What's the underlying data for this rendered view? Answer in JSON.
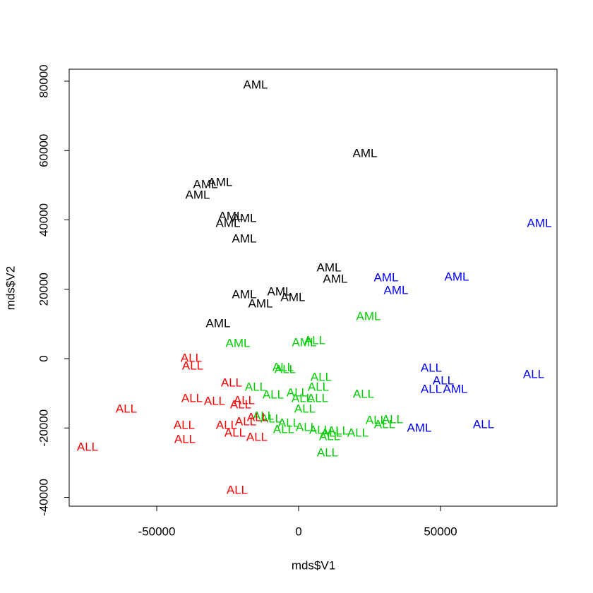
{
  "chart_data": {
    "type": "scatter-text",
    "x_label": "mds$V1",
    "y_label": "mds$V2",
    "xlim": [
      -80846,
      91045
    ],
    "ylim": [
      -42545,
      83461
    ],
    "xticks": [
      -50000,
      0,
      50000
    ],
    "yticks": [
      -40000,
      -20000,
      0,
      20000,
      40000,
      60000,
      80000
    ],
    "grid": false,
    "series": [
      {
        "color": "#000000",
        "labels": [
          "AML",
          "AML",
          "AML",
          "AML",
          "AML",
          "AML",
          "AML",
          "AML",
          "AML",
          "AML",
          "AML",
          "AML",
          "AML",
          "AML",
          "AML",
          "AML"
        ],
        "x": [
          -15174,
          23383,
          -32836,
          -27612,
          -35572,
          -23881,
          -19154,
          -24876,
          -19154,
          10697,
          12935,
          -19154,
          -6716,
          -1990,
          -13433,
          -28358
        ],
        "values": [
          78779,
          59033,
          50076,
          50687,
          47023,
          40916,
          40305,
          38880,
          34402,
          26056,
          22799,
          18321,
          19135,
          17506,
          15674,
          9975
        ]
      },
      {
        "color": "#0000ff",
        "labels": [
          "AML",
          "AML",
          "AML",
          "AML",
          "ALL",
          "ALL",
          "ALL",
          "ALL",
          "AML",
          "ALL",
          "AML"
        ],
        "x": [
          84826,
          30846,
          55721,
          34328,
          46766,
          82836,
          50995,
          46766,
          55224,
          65174,
          42537
        ],
        "values": [
          38880,
          23206,
          23410,
          19542,
          -2850,
          -4682,
          -6514,
          -8957,
          -8957,
          -19135,
          -20153
        ]
      },
      {
        "color": "#00cd00",
        "labels": [
          "AML",
          "AML",
          "AML",
          "ALL",
          "ALL",
          "ALL",
          "ALL",
          "ALL",
          "ALL",
          "ALL",
          "ALL",
          "ALL",
          "ALL",
          "ALL",
          "ALL",
          "ALL",
          "ALL",
          "ALL",
          "ALL",
          "ALL",
          "ALL",
          "ALL",
          "ALL",
          "ALL",
          "ALL",
          "ALL",
          "ALL",
          "ALL",
          "ALL"
        ],
        "x": [
          24627,
          -21393,
          1990,
          5721,
          -5473,
          -4726,
          7960,
          6965,
          -15174,
          -498,
          -8955,
          22886,
          1244,
          6716,
          2239,
          -12438,
          -9701,
          27363,
          33085,
          30348,
          -3483,
          -5224,
          2736,
          7463,
          11692,
          13930,
          20896,
          10945,
          10199
        ],
        "values": [
          12010,
          4275,
          4478,
          5089,
          -2646,
          -3257,
          -5496,
          -8346,
          -8346,
          -9975,
          -10585,
          -10382,
          -11603,
          -11603,
          -14656,
          -16692,
          -17506,
          -17913,
          -17710,
          -19135,
          -18728,
          -20560,
          -19949,
          -20763,
          -21578,
          -20967,
          -21578,
          -22595,
          -27277
        ]
      },
      {
        "color": "#ff0000",
        "labels": [
          "ALL",
          "ALL",
          "ALL",
          "ALL",
          "ALL",
          "ALL",
          "ALL",
          "ALL",
          "ALL",
          "ALL",
          "ALL",
          "ALL",
          "ALL",
          "ALL",
          "ALL",
          "ALL",
          "ALL"
        ],
        "x": [
          -37811,
          -37313,
          -23632,
          -37562,
          -29602,
          -19154,
          -20398,
          -60697,
          -14428,
          -18657,
          -40299,
          -25373,
          -22388,
          -40050,
          -14677,
          -74378,
          -21642
        ],
        "values": [
          0,
          -2239,
          -7125,
          -11603,
          -12417,
          -12214,
          -13435,
          -14656,
          -17099,
          -18321,
          -19338,
          -19338,
          -21578,
          -23410,
          -22799,
          -25649,
          -38066
        ]
      }
    ]
  }
}
